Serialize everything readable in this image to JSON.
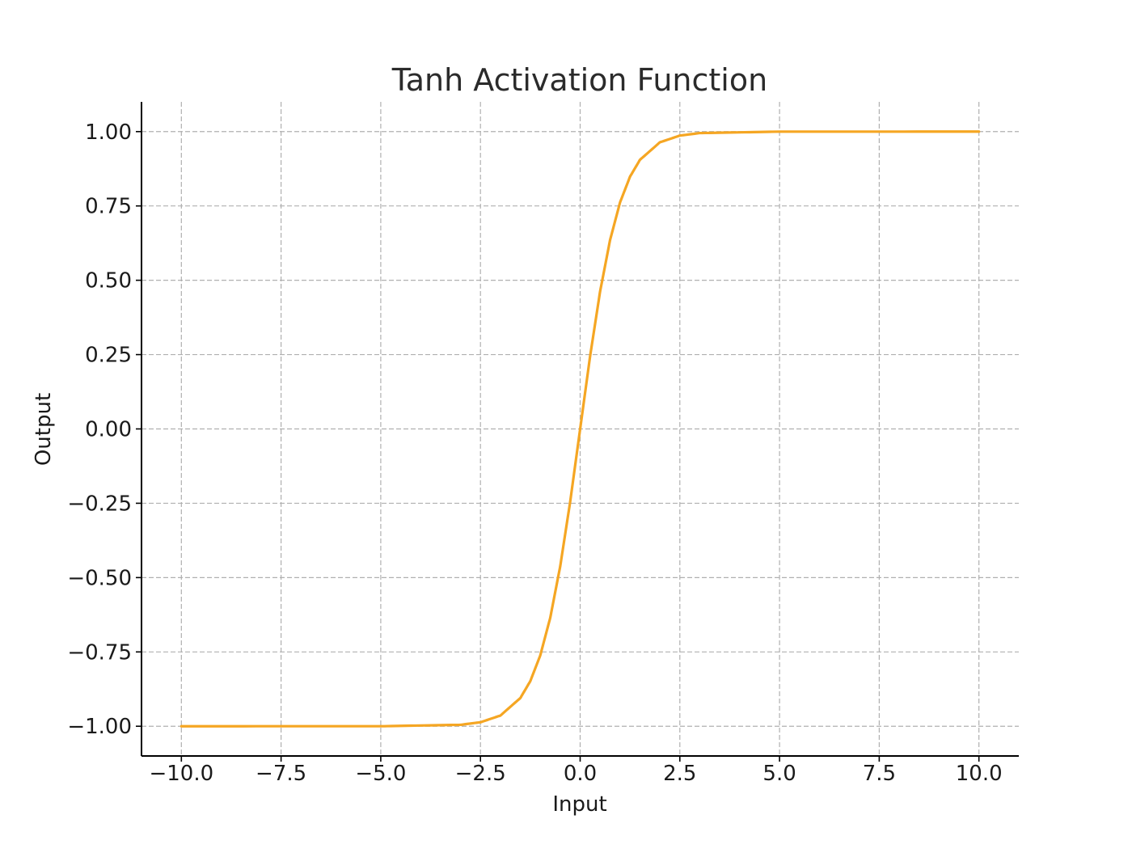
{
  "chart_data": {
    "type": "line",
    "title": "Tanh Activation Function",
    "xlabel": "Input",
    "ylabel": "Output",
    "xlim": [
      -11,
      11
    ],
    "ylim": [
      -1.1,
      1.1
    ],
    "grid": true,
    "x_ticks": [
      -10.0,
      -7.5,
      -5.0,
      -2.5,
      0.0,
      2.5,
      5.0,
      7.5,
      10.0
    ],
    "x_tick_labels": [
      "−10.0",
      "−7.5",
      "−5.0",
      "−2.5",
      "0.0",
      "2.5",
      "5.0",
      "7.5",
      "10.0"
    ],
    "y_ticks": [
      1.0,
      0.75,
      0.5,
      0.25,
      0.0,
      -0.25,
      -0.5,
      -0.75,
      -1.0
    ],
    "y_tick_labels": [
      "1.00",
      "0.75",
      "0.50",
      "0.25",
      "0.00",
      "−0.25",
      "−0.50",
      "−0.75",
      "−1.00"
    ],
    "series": [
      {
        "color": "#f5a623",
        "x": [
          -10.0,
          -5.0,
          -3.0,
          -2.5,
          -2.0,
          -1.5,
          -1.25,
          -1.0,
          -0.75,
          -0.5,
          -0.25,
          0.0,
          0.25,
          0.5,
          0.75,
          1.0,
          1.25,
          1.5,
          2.0,
          2.5,
          3.0,
          5.0,
          10.0
        ],
        "y": [
          -1.0,
          -0.9999,
          -0.9951,
          -0.9866,
          -0.964,
          -0.9051,
          -0.8483,
          -0.7616,
          -0.6351,
          -0.4621,
          -0.2449,
          0.0,
          0.2449,
          0.4621,
          0.6351,
          0.7616,
          0.8483,
          0.9051,
          0.964,
          0.9866,
          0.9951,
          0.9999,
          1.0
        ]
      }
    ]
  }
}
